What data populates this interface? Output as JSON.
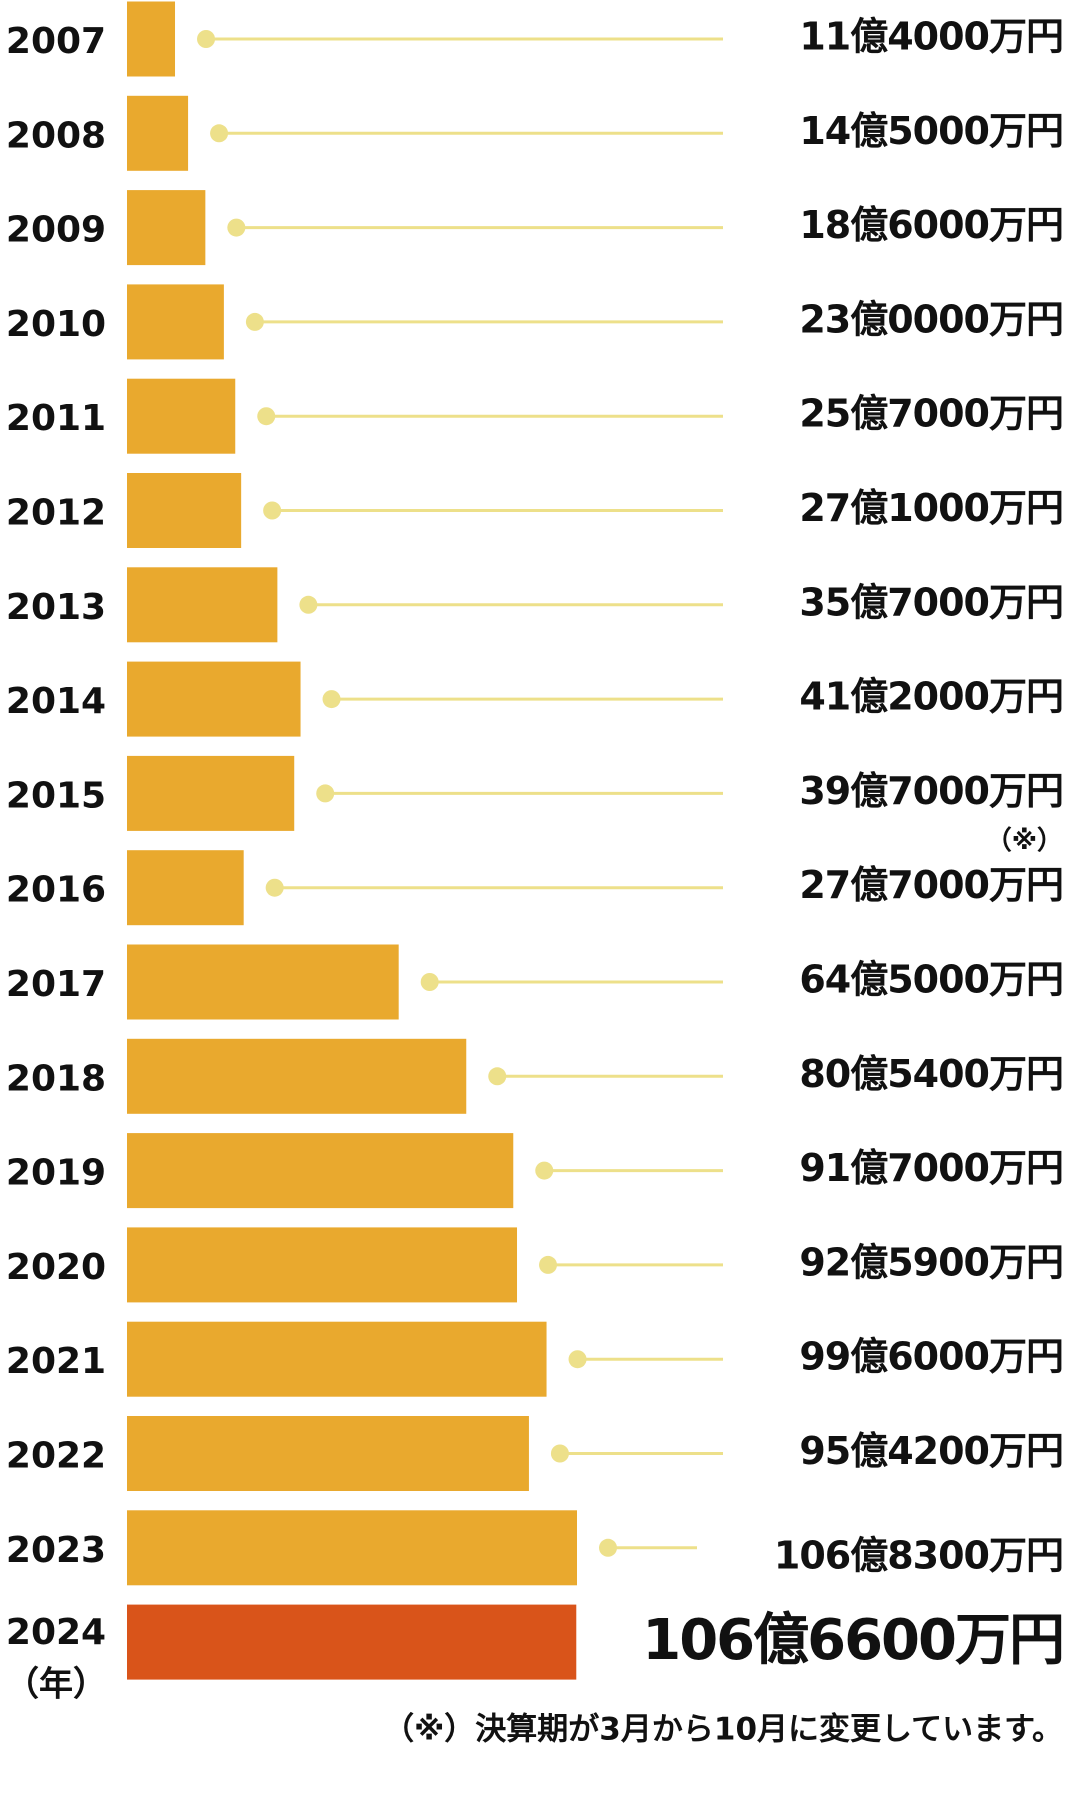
{
  "chart_data": {
    "type": "hbar",
    "categories": [
      "2007",
      "2008",
      "2009",
      "2010",
      "2011",
      "2012",
      "2013",
      "2014",
      "2015",
      "2016",
      "2017",
      "2018",
      "2019",
      "2020",
      "2021",
      "2022",
      "2023",
      "2024"
    ],
    "values": [
      114000,
      145000,
      186000,
      230000,
      257000,
      271000,
      357000,
      412000,
      397000,
      277000,
      645000,
      805400,
      917000,
      925900,
      996000,
      954200,
      1068300,
      1066600
    ],
    "value_labels": [
      "11億4000万円",
      "14億5000万円",
      "18億6000万円",
      "23億0000万円",
      "25億7000万円",
      "27億1000万円",
      "35億7000万円",
      "41億2000万円",
      "39億7000万円",
      "27億7000万円",
      "64億5000万円",
      "80億5400万円",
      "91億7000万円",
      "92億5900万円",
      "99億6000万円",
      "95億4200万円",
      "106億8300万円",
      "106億6600万円"
    ],
    "colors": [
      "#e9a92e",
      "#e9a92e",
      "#e9a92e",
      "#e9a92e",
      "#e9a92e",
      "#e9a92e",
      "#e9a92e",
      "#e9a92e",
      "#e9a92e",
      "#e9a92e",
      "#e9a92e",
      "#e9a92e",
      "#e9a92e",
      "#e9a92e",
      "#e9a92e",
      "#e9a92e",
      "#e9a92e",
      "#d9541a"
    ],
    "leader_color": "#ede08a",
    "category_unit": "（年）",
    "annotation": "（※）",
    "footnote": "（※）決算期が3月から10月に変更しています。"
  }
}
